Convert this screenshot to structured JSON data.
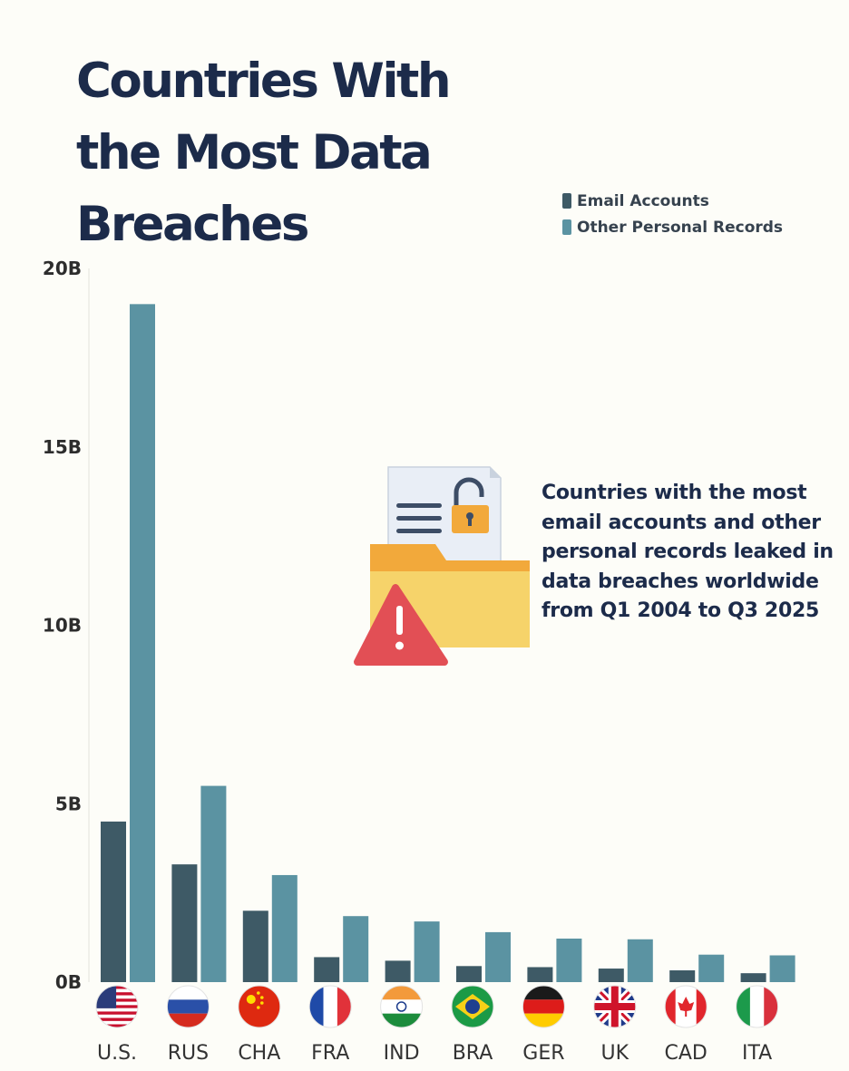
{
  "title": "Countries With the Most Data Breaches",
  "annotation": "Countries with the most email accounts and other personal records leaked in data breaches worldwide from Q1 2004 to Q3 2025",
  "icon": "data-breach-folder-icon",
  "colors": {
    "email": "#3e5a66",
    "other": "#5b93a2",
    "title": "#1c2b4a"
  },
  "chart_data": {
    "type": "bar",
    "title": "Countries With the Most Data Breaches",
    "xlabel": "",
    "ylabel": "",
    "ylim": [
      0,
      20
    ],
    "yticks": [
      0,
      5,
      10,
      15,
      20
    ],
    "ytick_labels": [
      "0B",
      "5B",
      "10B",
      "15B",
      "20B"
    ],
    "categories": [
      "U.S.",
      "RUS",
      "CHA",
      "FRA",
      "IND",
      "BRA",
      "GER",
      "UK",
      "CAD",
      "ITA"
    ],
    "series": [
      {
        "name": "Email Accounts",
        "values": [
          4.5,
          3.3,
          2.0,
          0.7,
          0.6,
          0.45,
          0.42,
          0.38,
          0.33,
          0.25
        ]
      },
      {
        "name": "Other Personal Records",
        "values": [
          19.0,
          5.5,
          3.0,
          1.85,
          1.7,
          1.4,
          1.22,
          1.2,
          0.77,
          0.75
        ]
      }
    ],
    "legend": "top-right"
  }
}
